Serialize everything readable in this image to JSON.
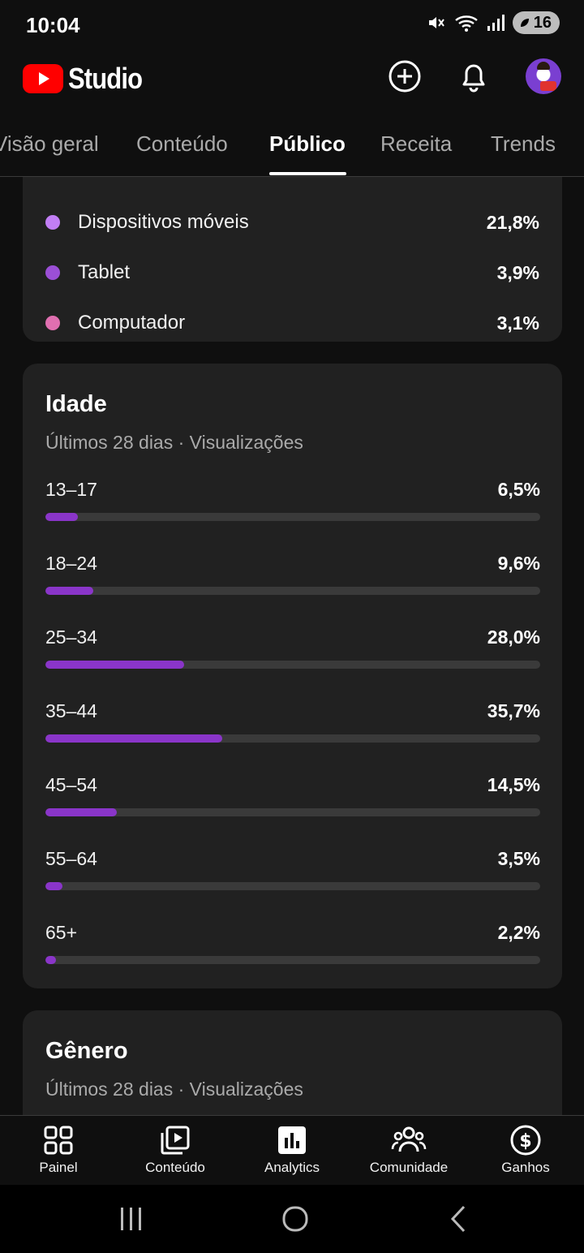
{
  "status_bar": {
    "time": "10:04",
    "battery_level": "16"
  },
  "header": {
    "logo_text": "Studio",
    "brand_color": "#ff0000"
  },
  "tabs": [
    {
      "label": "Visão geral",
      "active": false
    },
    {
      "label": "Conteúdo",
      "active": false
    },
    {
      "label": "Público",
      "active": true
    },
    {
      "label": "Receita",
      "active": false
    },
    {
      "label": "Trends",
      "active": false
    }
  ],
  "devices": {
    "items": [
      {
        "label": "Dispositivos móveis",
        "value": "21,8%",
        "color": "#c17ef5"
      },
      {
        "label": "Tablet",
        "value": "3,9%",
        "color": "#9b4fd6"
      },
      {
        "label": "Computador",
        "value": "3,1%",
        "color": "#e06fb0"
      }
    ]
  },
  "age": {
    "title": "Idade",
    "subtitle": "Últimos 28 dias · Visualizações",
    "bar_color": "#8a35c9",
    "rows": [
      {
        "label": "13–17",
        "value": "6,5%",
        "percent": 6.5
      },
      {
        "label": "18–24",
        "value": "9,6%",
        "percent": 9.6
      },
      {
        "label": "25–34",
        "value": "28,0%",
        "percent": 28.0
      },
      {
        "label": "35–44",
        "value": "35,7%",
        "percent": 35.7
      },
      {
        "label": "45–54",
        "value": "14,5%",
        "percent": 14.5
      },
      {
        "label": "55–64",
        "value": "3,5%",
        "percent": 3.5
      },
      {
        "label": "65+",
        "value": "2,2%",
        "percent": 2.2
      }
    ]
  },
  "gender": {
    "title": "Gênero",
    "subtitle": "Últimos 28 dias · Visualizações"
  },
  "bottom_nav": [
    {
      "label": "Painel",
      "icon": "dashboard-icon"
    },
    {
      "label": "Conteúdo",
      "icon": "content-icon"
    },
    {
      "label": "Analytics",
      "icon": "analytics-icon"
    },
    {
      "label": "Comunidade",
      "icon": "community-icon"
    },
    {
      "label": "Ganhos",
      "icon": "earnings-icon"
    }
  ]
}
